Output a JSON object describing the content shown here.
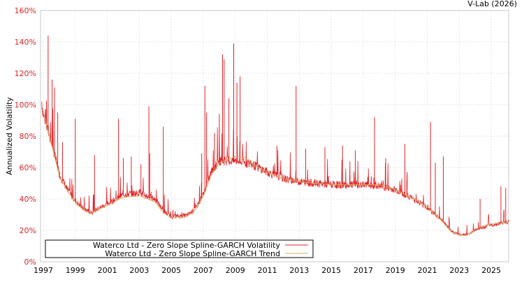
{
  "source_label": "V-Lab (2026)",
  "chart_data": {
    "type": "line",
    "title": "",
    "xlabel": "",
    "ylabel": "Annualized Volatility",
    "xlim": [
      1997,
      2026.1
    ],
    "ylim": [
      0,
      160
    ],
    "x_ticks": [
      1997,
      1999,
      2001,
      2003,
      2005,
      2007,
      2009,
      2011,
      2013,
      2015,
      2017,
      2019,
      2021,
      2023,
      2025
    ],
    "y_ticks": [
      0,
      20,
      40,
      60,
      80,
      100,
      120,
      140,
      160
    ],
    "y_tick_suffix": "%",
    "grid": true,
    "legend_position": "bottom-left",
    "colors": {
      "volatility": "#e0262b",
      "trend": "#d4b060",
      "y_ticks": "#d9262b"
    },
    "series": [
      {
        "name": "Waterco Ltd - Zero Slope Spline-GARCH Volatility",
        "baseline": {
          "x": [
            1996.9,
            1997.0,
            1997.5,
            1998,
            1998.5,
            1999,
            1999.5,
            2000,
            2001,
            2002,
            2003,
            2004,
            2004.5,
            2005,
            2006,
            2006.5,
            2007,
            2007.5,
            2008,
            2009,
            2009.5,
            2010,
            2011,
            2012,
            2013,
            2014,
            2015,
            2016,
            2017,
            2018,
            2019,
            2020,
            2021,
            2022,
            2022.5,
            2023,
            2023.5,
            2024,
            2025,
            2026.1
          ],
          "y": [
            100,
            92,
            75,
            55,
            45,
            38,
            33,
            31,
            36,
            42,
            43,
            39,
            32,
            28,
            29,
            33,
            42,
            56,
            63,
            63,
            62,
            61,
            56,
            52,
            50,
            49,
            48,
            48,
            48,
            47,
            45,
            40,
            34,
            25,
            19,
            17,
            17,
            20,
            23,
            25
          ]
        },
        "spikes": {
          "x": [
            1997.2,
            1997.3,
            1997.55,
            1997.7,
            1997.9,
            1998.2,
            1999.0,
            2000.2,
            2001.7,
            2002.0,
            2002.5,
            2003.1,
            2003.6,
            2003.65,
            2004.5,
            2006.9,
            2007.1,
            2007.2,
            2007.7,
            2008.0,
            2008.2,
            2008.3,
            2008.6,
            2008.9,
            2009.1,
            2009.3,
            2011.6,
            2012.8,
            2013.4,
            2014.6,
            2015.7,
            2016.5,
            2017.7,
            2018.4,
            2019.6,
            2021.2,
            2021.5,
            2022.0,
            2024.3,
            2025.6,
            2025.9
          ],
          "y": [
            102,
            144,
            116,
            111,
            95,
            76,
            91,
            68,
            91,
            66,
            67,
            62,
            99,
            69,
            86,
            69,
            112,
            95,
            82,
            94,
            132,
            129,
            104,
            139,
            114,
            118,
            74,
            112,
            72,
            73,
            74,
            71,
            92,
            66,
            75,
            89,
            63,
            67,
            40,
            48,
            47
          ]
        }
      },
      {
        "name": "Waterco Ltd - Zero Slope Spline-GARCH Trend",
        "x": [
          1997.0,
          1997.5,
          1998,
          1998.5,
          1999,
          1999.5,
          2000,
          2001,
          2002,
          2003,
          2004,
          2004.5,
          2005,
          2006,
          2006.5,
          2007,
          2007.5,
          2008,
          2009,
          2009.5,
          2010,
          2011,
          2012,
          2013,
          2014,
          2015,
          2016,
          2017,
          2018,
          2019,
          2020,
          2021,
          2022,
          2022.5,
          2023,
          2023.5,
          2024,
          2025,
          2026.1
        ],
        "y": [
          95,
          75,
          55,
          45,
          38,
          33,
          31,
          36,
          41,
          42,
          38,
          31,
          28,
          29,
          33,
          42,
          55,
          63,
          67,
          67,
          63,
          57,
          53,
          51,
          50,
          49,
          49,
          49,
          49,
          46,
          41,
          35,
          25,
          19,
          17,
          17,
          21,
          24,
          25
        ]
      }
    ]
  }
}
